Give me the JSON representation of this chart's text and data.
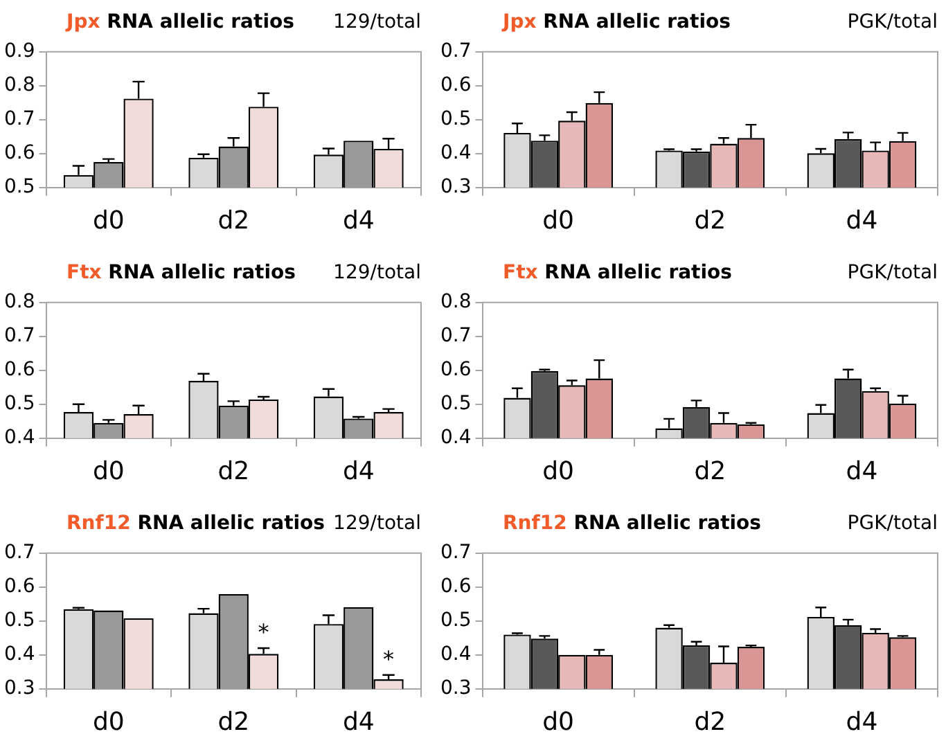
{
  "chart_data": [
    {
      "type": "bar",
      "title": "Jpx RNA allelic ratios",
      "subtitle": "129/total",
      "categories": [
        "d0",
        "d2",
        "d4"
      ],
      "ylim": [
        0.5,
        0.9
      ],
      "yticks": [
        0.5,
        0.6,
        0.7,
        0.8,
        0.9
      ],
      "series": [
        {
          "color": "#d9d9d9",
          "values": [
            0.537,
            0.588,
            0.597
          ],
          "errors": [
            0.027,
            0.01,
            0.018
          ]
        },
        {
          "color": "#999999",
          "values": [
            0.575,
            0.621,
            0.638
          ],
          "errors": [
            0.009,
            0.025,
            null
          ]
        },
        {
          "color": "#f2dcdb",
          "values": [
            0.762,
            0.738,
            0.614
          ],
          "errors": [
            0.05,
            0.04,
            0.03
          ]
        }
      ]
    },
    {
      "type": "bar",
      "title": "Jpx RNA allelic ratios",
      "subtitle": "PGK/total",
      "categories": [
        "d0",
        "d2",
        "d4"
      ],
      "ylim": [
        0.3,
        0.7
      ],
      "yticks": [
        0.3,
        0.4,
        0.5,
        0.6,
        0.7
      ],
      "series": [
        {
          "color": "#d9d9d9",
          "values": [
            0.461,
            0.409,
            0.401
          ],
          "errors": [
            0.028,
            0.004,
            0.013
          ]
        },
        {
          "color": "#595959",
          "values": [
            0.438,
            0.406,
            0.443
          ],
          "errors": [
            0.016,
            0.007,
            0.019
          ]
        },
        {
          "color": "#e6b8b7",
          "values": [
            0.497,
            0.429,
            0.409
          ],
          "errors": [
            0.025,
            0.017,
            0.024
          ]
        },
        {
          "color": "#da9694",
          "values": [
            0.549,
            0.446,
            0.437
          ],
          "errors": [
            0.032,
            0.039,
            0.024
          ]
        }
      ]
    },
    {
      "type": "bar",
      "title": "Ftx RNA allelic ratios",
      "subtitle": "129/total",
      "categories": [
        "d0",
        "d2",
        "d4"
      ],
      "ylim": [
        0.4,
        0.8
      ],
      "yticks": [
        0.4,
        0.5,
        0.6,
        0.7,
        0.8
      ],
      "series": [
        {
          "color": "#d9d9d9",
          "values": [
            0.477,
            0.569,
            0.523
          ],
          "errors": [
            0.023,
            0.021,
            0.022
          ]
        },
        {
          "color": "#999999",
          "values": [
            0.445,
            0.496,
            0.458
          ],
          "errors": [
            0.009,
            0.013,
            0.005
          ]
        },
        {
          "color": "#f2dcdb",
          "values": [
            0.471,
            0.514,
            0.477
          ],
          "errors": [
            0.025,
            0.008,
            0.009
          ]
        }
      ]
    },
    {
      "type": "bar",
      "title": "Ftx RNA allelic ratios",
      "subtitle": "PGK/total",
      "categories": [
        "d0",
        "d2",
        "d4"
      ],
      "ylim": [
        0.4,
        0.8
      ],
      "yticks": [
        0.4,
        0.5,
        0.6,
        0.7,
        0.8
      ],
      "series": [
        {
          "color": "#d9d9d9",
          "values": [
            0.519,
            0.429,
            0.474
          ],
          "errors": [
            0.028,
            0.028,
            0.024
          ]
        },
        {
          "color": "#595959",
          "values": [
            0.598,
            0.492,
            0.576
          ],
          "errors": [
            0.004,
            0.019,
            0.026
          ]
        },
        {
          "color": "#e6b8b7",
          "values": [
            0.556,
            0.445,
            0.539
          ],
          "errors": [
            0.014,
            0.029,
            0.008
          ]
        },
        {
          "color": "#da9694",
          "values": [
            0.576,
            0.441,
            0.502
          ],
          "errors": [
            0.054,
            0.004,
            0.023
          ]
        }
      ]
    },
    {
      "type": "bar",
      "title": "Rnf12 RNA allelic ratios",
      "subtitle": "129/total",
      "categories": [
        "d0",
        "d2",
        "d4"
      ],
      "ylim": [
        0.3,
        0.7
      ],
      "yticks": [
        0.3,
        0.4,
        0.5,
        0.6,
        0.7
      ],
      "series": [
        {
          "color": "#d9d9d9",
          "values": [
            0.535,
            0.523,
            0.491
          ],
          "errors": [
            0.004,
            0.013,
            0.026
          ]
        },
        {
          "color": "#999999",
          "values": [
            0.531,
            0.579,
            0.541
          ],
          "errors": [
            null,
            null,
            null
          ]
        },
        {
          "color": "#f2dcdb",
          "values": [
            0.508,
            0.403,
            0.328
          ],
          "errors": [
            null,
            0.017,
            0.013
          ]
        }
      ],
      "annotations": [
        "*",
        "*"
      ]
    },
    {
      "type": "bar",
      "title": "Rnf12 RNA allelic ratios",
      "subtitle": "PGK/total",
      "categories": [
        "d0",
        "d2",
        "d4"
      ],
      "ylim": [
        0.3,
        0.7
      ],
      "yticks": [
        0.3,
        0.4,
        0.5,
        0.6,
        0.7
      ],
      "series": [
        {
          "color": "#d9d9d9",
          "values": [
            0.46,
            0.48,
            0.512
          ],
          "errors": [
            0.004,
            0.008,
            0.028
          ]
        },
        {
          "color": "#595959",
          "values": [
            0.448,
            0.428,
            0.488
          ],
          "errors": [
            0.008,
            0.011,
            0.016
          ]
        },
        {
          "color": "#e6b8b7",
          "values": [
            0.4,
            0.377,
            0.465
          ],
          "errors": [
            null,
            0.048,
            0.011
          ]
        },
        {
          "color": "#da9694",
          "values": [
            0.4,
            0.424,
            0.452
          ],
          "errors": [
            0.015,
            0.004,
            0.004
          ]
        }
      ]
    }
  ]
}
